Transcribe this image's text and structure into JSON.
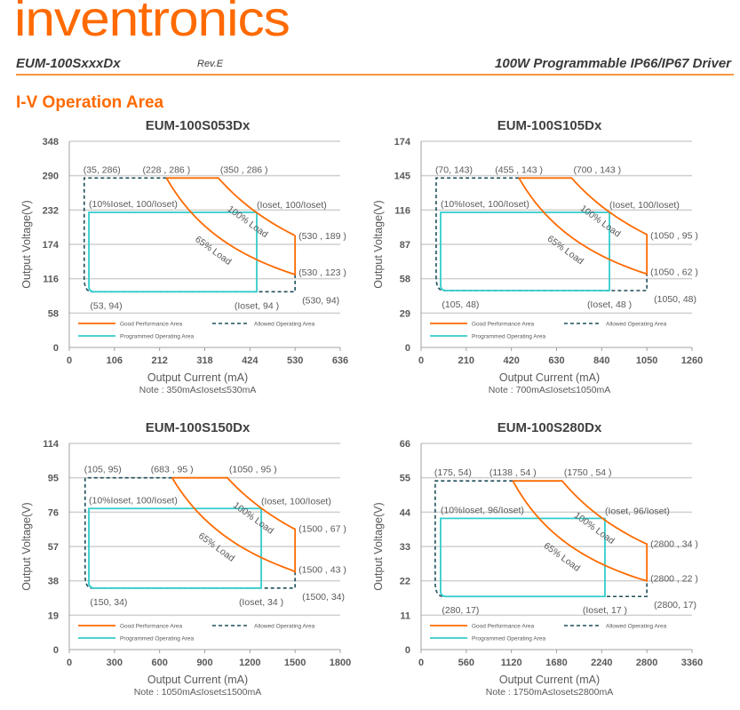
{
  "header": {
    "logo": "inventronics",
    "model": "EUM-100SxxxDx",
    "revision": "Rev.E",
    "product": "100W Programmable IP66/IP67 Driver"
  },
  "section_title": "I-V Operation Area",
  "colors": {
    "good": "#ff6a00",
    "allowed": "#1f4e5a",
    "programmed": "#33cccc",
    "brand": "#ff6a00"
  },
  "legend": [
    "Good Performance Area",
    "Allowed Operating Area",
    "Programmed Operating Area"
  ],
  "curve_labels": [
    "100% Load",
    "65% Load"
  ],
  "chart_data": [
    {
      "type": "line",
      "title": "EUM-100S053Dx",
      "xlabel": "Output Current (mA)",
      "ylabel": "Output Voltage(V)",
      "note": "Note :  350mA≤Ioset≤530mA",
      "xlim": [
        0,
        636
      ],
      "ylim": [
        0,
        348
      ],
      "xticks": [
        0,
        106,
        212,
        318,
        424,
        530,
        636
      ],
      "yticks": [
        0,
        58,
        116,
        174,
        232,
        290,
        348
      ],
      "allowed_area": {
        "i_min": 35,
        "i_low": 53,
        "v_max": 286,
        "v_min": 94,
        "i_max": 530,
        "v_right_top": 123
      },
      "good_performance": {
        "i_65_start": 228,
        "i_100_start": 350,
        "v_max": 286,
        "i_max": 530,
        "v_100_end": 189,
        "v_65_end": 123
      },
      "programmed_area": {
        "i_min": 46,
        "i_max": 440,
        "v_max": 228,
        "v_min": 94
      },
      "labels": [
        "(35, 286)",
        "(228 , 286 )",
        "(350 , 286 )",
        "(10%Ioset, 100/Ioset)",
        "(Ioset, 100/Ioset)",
        "(530 , 189 )",
        "(530 , 123 )",
        "(530, 94)",
        "(53, 94)",
        "(Ioset, 94 )"
      ]
    },
    {
      "type": "line",
      "title": "EUM-100S105Dx",
      "xlabel": "Output Current (mA)",
      "ylabel": "Output Voltage(V)",
      "note": "Note :  700mA≤Ioset≤1050mA",
      "xlim": [
        0,
        1260
      ],
      "ylim": [
        0,
        174
      ],
      "xticks": [
        0,
        210,
        420,
        630,
        840,
        1050,
        1260
      ],
      "yticks": [
        0,
        29,
        58,
        87,
        116,
        145,
        174
      ],
      "allowed_area": {
        "i_min": 70,
        "i_low": 105,
        "v_max": 143,
        "v_min": 48,
        "i_max": 1050,
        "v_right_top": 62
      },
      "good_performance": {
        "i_65_start": 455,
        "i_100_start": 700,
        "v_max": 143,
        "i_max": 1050,
        "v_100_end": 95,
        "v_65_end": 62
      },
      "programmed_area": {
        "i_min": 91,
        "i_max": 876,
        "v_max": 114,
        "v_min": 48
      },
      "labels": [
        "(70, 143)",
        "(455 , 143 )",
        "(700 , 143 )",
        "(10%Ioset, 100/Ioset)",
        "(Ioset, 100/Ioset)",
        "(1050 , 95 )",
        "(1050 , 62 )",
        "(1050, 48)",
        "(105, 48)",
        "(Ioset, 48 )"
      ]
    },
    {
      "type": "line",
      "title": "EUM-100S150Dx",
      "xlabel": "Output Current (mA)",
      "ylabel": "Output Voltage(V)",
      "note": "Note :  1050mA≤Ioset≤1500mA",
      "xlim": [
        0,
        1800
      ],
      "ylim": [
        0,
        114
      ],
      "xticks": [
        0,
        300,
        600,
        900,
        1200,
        1500,
        1800
      ],
      "yticks": [
        0,
        19,
        38,
        57,
        76,
        95,
        114
      ],
      "allowed_area": {
        "i_min": 105,
        "i_low": 150,
        "v_max": 95,
        "v_min": 34,
        "i_max": 1500,
        "v_right_top": 43
      },
      "good_performance": {
        "i_65_start": 683,
        "i_100_start": 1050,
        "v_max": 95,
        "i_max": 1500,
        "v_100_end": 67,
        "v_65_end": 43
      },
      "programmed_area": {
        "i_min": 130,
        "i_max": 1275,
        "v_max": 78,
        "v_min": 34
      },
      "labels": [
        "(105, 95)",
        "(683 , 95 )",
        "(1050 , 95 )",
        "(10%Ioset, 100/Ioset)",
        "(Ioset, 100/Ioset)",
        "(1500 , 67 )",
        "(1500 , 43 )",
        "(1500, 34)",
        "(150, 34)",
        "(Ioset, 34 )"
      ]
    },
    {
      "type": "line",
      "title": "EUM-100S280Dx",
      "xlabel": "Output Current (mA)",
      "ylabel": "Output Voltage(V)",
      "note": "Note :  1750mA≤Ioset≤2800mA",
      "xlim": [
        0,
        3360
      ],
      "ylim": [
        0,
        66
      ],
      "xticks": [
        0,
        560,
        1120,
        1680,
        2240,
        2800,
        3360
      ],
      "yticks": [
        0,
        11,
        22,
        33,
        44,
        55,
        66
      ],
      "allowed_area": {
        "i_min": 175,
        "i_low": 280,
        "v_max": 54,
        "v_min": 17,
        "i_max": 2800,
        "v_right_top": 22
      },
      "good_performance": {
        "i_65_start": 1138,
        "i_100_start": 1750,
        "v_max": 54,
        "i_max": 2800,
        "v_100_end": 34,
        "v_65_end": 22
      },
      "programmed_area": {
        "i_min": 242,
        "i_max": 2280,
        "v_max": 42,
        "v_min": 17
      },
      "labels": [
        "(175, 54)",
        "(1138 , 54 )",
        "(1750 , 54 )",
        "(10%Ioset, 96/Ioset)",
        "(Ioset, 96/Ioset)",
        "(2800 , 34 )",
        "(2800 , 22 )",
        "(2800, 17)",
        "(280, 17)",
        "(Ioset, 17 )"
      ]
    }
  ]
}
